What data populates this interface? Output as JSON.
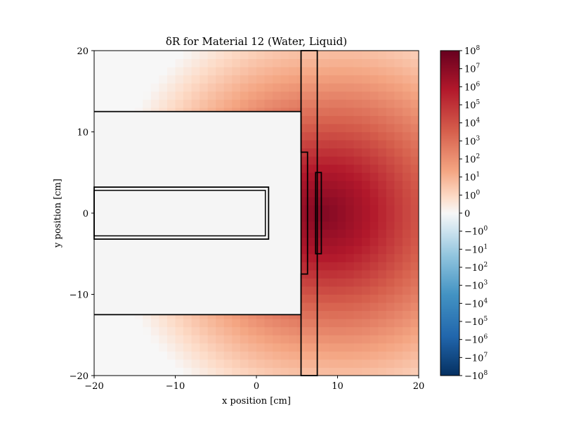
{
  "chart_data": {
    "type": "heatmap",
    "title": "δR for Material 12 (Water, Liquid)",
    "xlabel": "x position [cm]",
    "ylabel": "y position [cm]",
    "xlim": [
      -20,
      20
    ],
    "ylim": [
      -20,
      20
    ],
    "xticks": [
      {
        "value": -20,
        "label": "−20"
      },
      {
        "value": -10,
        "label": "−10"
      },
      {
        "value": 0,
        "label": "0"
      },
      {
        "value": 10,
        "label": "10"
      },
      {
        "value": 20,
        "label": "20"
      }
    ],
    "yticks": [
      {
        "value": -20,
        "label": "−20"
      },
      {
        "value": -10,
        "label": "−10"
      },
      {
        "value": 0,
        "label": "0"
      },
      {
        "value": 10,
        "label": "10"
      },
      {
        "value": 20,
        "label": "20"
      }
    ],
    "grid": false,
    "colormap": "RdBu_r",
    "color_scale": "symlog",
    "colorbar": {
      "labels": [
        {
          "base": "10",
          "exp": "8"
        },
        {
          "base": "10",
          "exp": "7"
        },
        {
          "base": "10",
          "exp": "6"
        },
        {
          "base": "10",
          "exp": "5"
        },
        {
          "base": "10",
          "exp": "4"
        },
        {
          "base": "10",
          "exp": "3"
        },
        {
          "base": "10",
          "exp": "2"
        },
        {
          "base": "10",
          "exp": "1"
        },
        {
          "base": "10",
          "exp": "0"
        },
        {
          "base": "0",
          "exp": ""
        },
        {
          "base": "−10",
          "exp": "0"
        },
        {
          "base": "−10",
          "exp": "1"
        },
        {
          "base": "−10",
          "exp": "2"
        },
        {
          "base": "−10",
          "exp": "3"
        },
        {
          "base": "−10",
          "exp": "4"
        },
        {
          "base": "−10",
          "exp": "5"
        },
        {
          "base": "−10",
          "exp": "6"
        },
        {
          "base": "−10",
          "exp": "7"
        },
        {
          "base": "−10",
          "exp": "8"
        }
      ]
    },
    "void_regions": [
      {
        "name": "upper-void",
        "x": [
          -20,
          5.5
        ],
        "y": [
          -12.5,
          12.5
        ]
      }
    ],
    "outlined_regions": [
      {
        "name": "inner-bar",
        "x": [
          -20,
          1.5
        ],
        "y": [
          -3.2,
          3.2
        ]
      },
      {
        "name": "right-slab",
        "x": [
          5.5,
          7.5
        ],
        "y": [
          -20,
          20
        ]
      },
      {
        "name": "thin-plate",
        "x": [
          7.3,
          8.0
        ],
        "y": [
          -5,
          5
        ]
      }
    ],
    "notes": "Field values peak (~10^7) near x≈8, y≈0 and decrease toward the left edge (~10^1)."
  }
}
